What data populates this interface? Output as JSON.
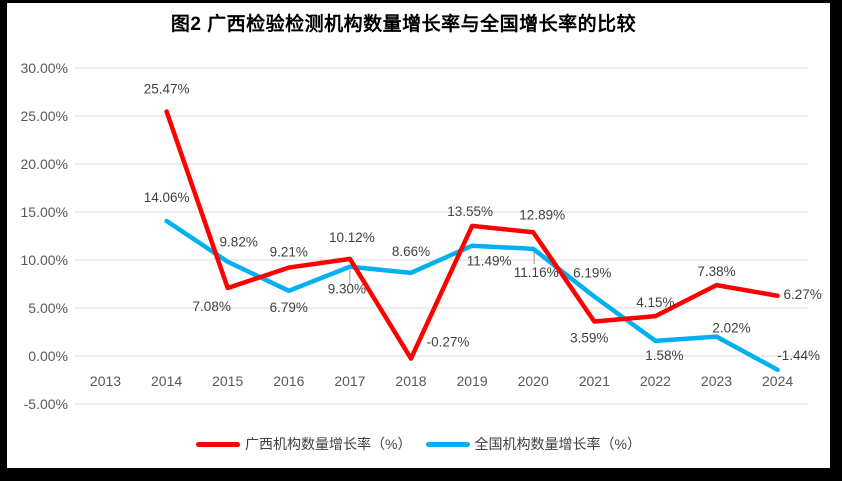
{
  "chart_data": {
    "type": "line",
    "title": "图2 广西检验检测机构数量增长率与全国增长率的比较",
    "categories": [
      "2013",
      "2014",
      "2015",
      "2016",
      "2017",
      "2018",
      "2019",
      "2020",
      "2021",
      "2022",
      "2023",
      "2024"
    ],
    "start_index": 1,
    "series": [
      {
        "name": "广西机构数量增长率（%）",
        "color": "#FF0000",
        "values": [
          25.47,
          7.08,
          9.21,
          10.12,
          -0.27,
          13.55,
          12.89,
          3.59,
          4.15,
          7.38,
          6.27
        ],
        "labels": [
          "25.47%",
          "7.08%",
          "9.21%",
          "10.12%",
          "-0.27%",
          "13.55%",
          "12.89%",
          "3.59%",
          "4.15%",
          "7.38%",
          "6.27%"
        ]
      },
      {
        "name": "全国机构数量增长率（%）",
        "color": "#00B0F0",
        "values": [
          14.06,
          9.82,
          6.79,
          9.3,
          8.66,
          11.49,
          11.16,
          6.19,
          1.58,
          2.02,
          -1.44
        ],
        "labels": [
          "14.06%",
          "9.82%",
          "6.79%",
          "9.30%",
          "8.66%",
          "11.49%",
          "11.16%",
          "6.19%",
          "1.58%",
          "2.02%",
          "-1.44%"
        ]
      }
    ],
    "y_axis": {
      "min": -5,
      "max": 30,
      "step": 5,
      "tick_labels": [
        "30.00%",
        "25.00%",
        "20.00%",
        "15.00%",
        "10.00%",
        "5.00%",
        "0.00%",
        "-5.00%"
      ]
    },
    "grid": true,
    "legend_position": "bottom",
    "colors": {
      "gridline": "#D9D9D9",
      "axis_text": "#595959",
      "data_label_text": "#404040",
      "leader_line": "#A6A6A6",
      "frame_border": "#000000"
    }
  }
}
